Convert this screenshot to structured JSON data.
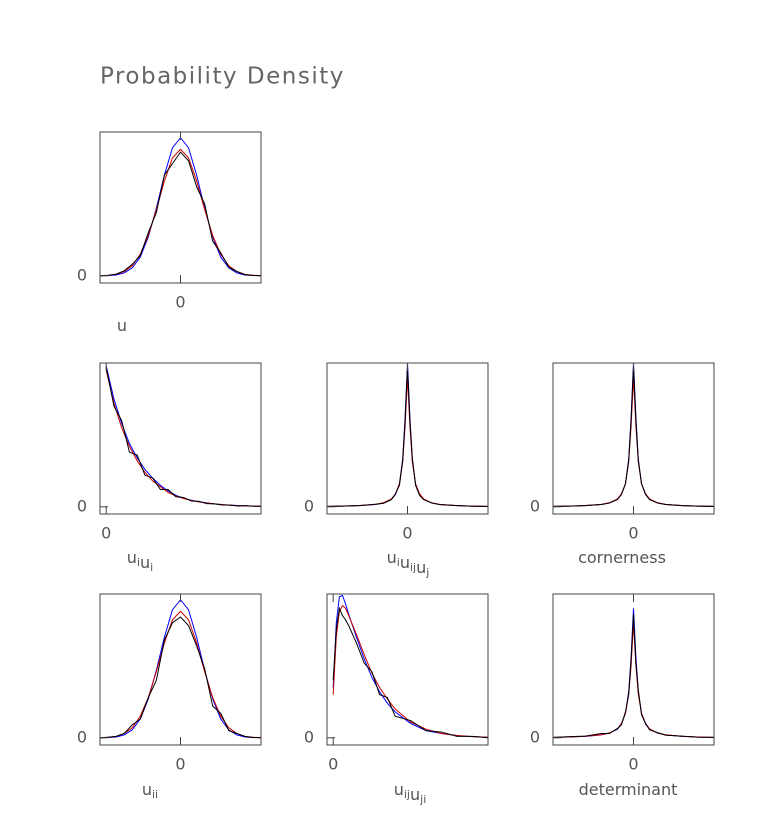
{
  "title": "Probability Density",
  "chart_data": [
    {
      "type": "line",
      "label": [
        [
          "u"
        ]
      ],
      "x": [
        -1,
        -0.9,
        -0.8,
        -0.7,
        -0.6,
        -0.5,
        -0.4,
        -0.3,
        -0.2,
        -0.1,
        0,
        0.1,
        0.2,
        0.3,
        0.4,
        0.5,
        0.6,
        0.7,
        0.8,
        0.9,
        1
      ],
      "series": [
        {
          "color": "#0000ff",
          "values": [
            0,
            0.002,
            0.006,
            0.02,
            0.055,
            0.13,
            0.27,
            0.47,
            0.7,
            0.89,
            0.96,
            0.89,
            0.7,
            0.47,
            0.27,
            0.13,
            0.055,
            0.02,
            0.006,
            0.002,
            0
          ]
        },
        {
          "color": "#cc0000",
          "values": [
            0.001,
            0.004,
            0.01,
            0.03,
            0.07,
            0.15,
            0.28,
            0.46,
            0.66,
            0.82,
            0.88,
            0.82,
            0.66,
            0.46,
            0.28,
            0.15,
            0.07,
            0.03,
            0.01,
            0.004,
            0.001
          ]
        },
        {
          "color": "#000000",
          "values": [
            0,
            0.003,
            0.012,
            0.035,
            0.08,
            0.14,
            0.3,
            0.44,
            0.7,
            0.78,
            0.86,
            0.8,
            0.62,
            0.5,
            0.24,
            0.16,
            0.06,
            0.03,
            0.008,
            0.002,
            0
          ]
        }
      ],
      "xlim": [
        -1,
        1
      ],
      "ylim": [
        -0.05,
        1
      ],
      "xticks": [
        0
      ],
      "yticks": [
        0
      ]
    },
    {
      "type": "line",
      "label": [
        [
          "u",
          "i"
        ],
        [
          "u",
          "i"
        ]
      ],
      "x": [
        0,
        0.05,
        0.1,
        0.15,
        0.2,
        0.25,
        0.3,
        0.35,
        0.4,
        0.45,
        0.5,
        0.55,
        0.6,
        0.65,
        0.7,
        0.75,
        0.8,
        0.85,
        0.9,
        0.95,
        1
      ],
      "series": [
        {
          "color": "#0000ff",
          "values": [
            0.98,
            0.75,
            0.58,
            0.44,
            0.34,
            0.26,
            0.2,
            0.15,
            0.11,
            0.08,
            0.06,
            0.046,
            0.035,
            0.027,
            0.02,
            0.015,
            0.012,
            0.009,
            0.007,
            0.005,
            0.004
          ]
        },
        {
          "color": "#cc0000",
          "values": [
            0.95,
            0.72,
            0.55,
            0.42,
            0.32,
            0.24,
            0.18,
            0.14,
            0.1,
            0.075,
            0.058,
            0.044,
            0.034,
            0.026,
            0.02,
            0.015,
            0.011,
            0.008,
            0.006,
            0.005,
            0.004
          ]
        },
        {
          "color": "#000000",
          "values": [
            0.97,
            0.7,
            0.6,
            0.38,
            0.36,
            0.22,
            0.2,
            0.12,
            0.12,
            0.07,
            0.065,
            0.04,
            0.038,
            0.022,
            0.02,
            0.013,
            0.012,
            0.006,
            0.008,
            0.004,
            0.003
          ]
        }
      ],
      "xlim": [
        -0.04,
        1
      ],
      "ylim": [
        -0.05,
        1
      ],
      "xticks": [
        0
      ],
      "yticks": [
        0
      ]
    },
    {
      "type": "line",
      "label": [
        [
          "u",
          "i"
        ],
        [
          "u",
          "ij"
        ],
        [
          "u",
          "j"
        ]
      ],
      "x": [
        -1,
        -0.8,
        -0.6,
        -0.4,
        -0.3,
        -0.2,
        -0.15,
        -0.1,
        -0.06,
        -0.03,
        0,
        0.03,
        0.06,
        0.1,
        0.15,
        0.2,
        0.3,
        0.4,
        0.6,
        0.8,
        1
      ],
      "series": [
        {
          "color": "#0000ff",
          "values": [
            0.003,
            0.005,
            0.008,
            0.016,
            0.026,
            0.052,
            0.085,
            0.16,
            0.33,
            0.62,
            1,
            0.62,
            0.33,
            0.16,
            0.085,
            0.052,
            0.026,
            0.016,
            0.008,
            0.005,
            0.003
          ]
        },
        {
          "color": "#cc0000",
          "values": [
            0.003,
            0.005,
            0.009,
            0.017,
            0.028,
            0.055,
            0.09,
            0.16,
            0.31,
            0.56,
            0.9,
            0.56,
            0.31,
            0.16,
            0.09,
            0.055,
            0.028,
            0.017,
            0.009,
            0.005,
            0.003
          ]
        },
        {
          "color": "#000000",
          "values": [
            0.002,
            0.006,
            0.008,
            0.018,
            0.024,
            0.05,
            0.09,
            0.15,
            0.32,
            0.6,
            0.97,
            0.6,
            0.34,
            0.15,
            0.08,
            0.05,
            0.027,
            0.015,
            0.009,
            0.004,
            0.002
          ]
        }
      ],
      "xlim": [
        -1,
        1
      ],
      "ylim": [
        -0.05,
        1
      ],
      "xticks": [
        0
      ],
      "yticks": [
        0
      ]
    },
    {
      "type": "line",
      "label": [
        [
          "cornerness"
        ]
      ],
      "x": [
        -1,
        -0.8,
        -0.6,
        -0.4,
        -0.3,
        -0.2,
        -0.15,
        -0.1,
        -0.06,
        -0.03,
        0,
        0.03,
        0.06,
        0.1,
        0.15,
        0.2,
        0.3,
        0.4,
        0.6,
        0.8,
        1
      ],
      "series": [
        {
          "color": "#0000ff",
          "values": [
            0.003,
            0.005,
            0.008,
            0.016,
            0.026,
            0.052,
            0.085,
            0.16,
            0.33,
            0.62,
            1,
            0.62,
            0.33,
            0.16,
            0.085,
            0.052,
            0.026,
            0.016,
            0.008,
            0.005,
            0.003
          ]
        },
        {
          "color": "#cc0000",
          "values": [
            0.003,
            0.005,
            0.009,
            0.017,
            0.028,
            0.055,
            0.09,
            0.16,
            0.31,
            0.56,
            0.9,
            0.56,
            0.31,
            0.16,
            0.09,
            0.055,
            0.028,
            0.017,
            0.009,
            0.005,
            0.003
          ]
        },
        {
          "color": "#000000",
          "values": [
            0.003,
            0.005,
            0.008,
            0.016,
            0.026,
            0.05,
            0.086,
            0.16,
            0.32,
            0.6,
            0.98,
            0.6,
            0.32,
            0.16,
            0.086,
            0.05,
            0.026,
            0.016,
            0.008,
            0.005,
            0.003
          ]
        }
      ],
      "xlim": [
        -1,
        1
      ],
      "ylim": [
        -0.05,
        1
      ],
      "xticks": [
        0
      ],
      "yticks": [
        0
      ]
    },
    {
      "type": "line",
      "label": [
        [
          "u",
          "ii"
        ]
      ],
      "x": [
        -1,
        -0.9,
        -0.8,
        -0.7,
        -0.6,
        -0.5,
        -0.4,
        -0.3,
        -0.2,
        -0.1,
        0,
        0.1,
        0.2,
        0.3,
        0.4,
        0.5,
        0.6,
        0.7,
        0.8,
        0.9,
        1
      ],
      "series": [
        {
          "color": "#0000ff",
          "values": [
            0,
            0.002,
            0.006,
            0.02,
            0.055,
            0.13,
            0.27,
            0.47,
            0.7,
            0.89,
            0.96,
            0.89,
            0.7,
            0.47,
            0.27,
            0.13,
            0.055,
            0.02,
            0.006,
            0.002,
            0
          ]
        },
        {
          "color": "#cc0000",
          "values": [
            0.001,
            0.004,
            0.01,
            0.03,
            0.07,
            0.15,
            0.28,
            0.46,
            0.66,
            0.82,
            0.88,
            0.82,
            0.66,
            0.46,
            0.28,
            0.15,
            0.07,
            0.03,
            0.01,
            0.004,
            0.001
          ]
        },
        {
          "color": "#000000",
          "values": [
            0,
            0.004,
            0.01,
            0.03,
            0.09,
            0.13,
            0.28,
            0.4,
            0.68,
            0.8,
            0.84,
            0.78,
            0.64,
            0.48,
            0.22,
            0.17,
            0.05,
            0.03,
            0.01,
            0.002,
            0
          ]
        }
      ],
      "xlim": [
        -1,
        1
      ],
      "ylim": [
        -0.05,
        1
      ],
      "xticks": [
        0
      ],
      "yticks": [
        0
      ]
    },
    {
      "type": "line",
      "label": [
        [
          "u",
          "ij"
        ],
        [
          "u",
          "ji"
        ]
      ],
      "x": [
        0,
        0.02,
        0.04,
        0.06,
        0.08,
        0.1,
        0.15,
        0.2,
        0.25,
        0.3,
        0.35,
        0.4,
        0.5,
        0.6,
        0.7,
        0.8,
        0.9,
        1
      ],
      "series": [
        {
          "color": "#0000ff",
          "values": [
            0.35,
            0.8,
            0.98,
            0.99,
            0.93,
            0.86,
            0.7,
            0.55,
            0.42,
            0.32,
            0.24,
            0.18,
            0.1,
            0.05,
            0.03,
            0.015,
            0.008,
            0.004
          ]
        },
        {
          "color": "#cc0000",
          "values": [
            0.3,
            0.7,
            0.88,
            0.92,
            0.9,
            0.85,
            0.72,
            0.58,
            0.45,
            0.35,
            0.27,
            0.2,
            0.11,
            0.06,
            0.03,
            0.016,
            0.008,
            0.004
          ]
        },
        {
          "color": "#000000",
          "values": [
            0.4,
            0.75,
            0.9,
            0.85,
            0.82,
            0.78,
            0.66,
            0.52,
            0.46,
            0.3,
            0.28,
            0.15,
            0.12,
            0.05,
            0.04,
            0.01,
            0.01,
            0
          ]
        }
      ],
      "xlim": [
        -0.04,
        1
      ],
      "ylim": [
        -0.05,
        1
      ],
      "xticks": [
        0
      ],
      "yticks": [
        0
      ]
    },
    {
      "type": "line",
      "label": [
        [
          "determinant"
        ]
      ],
      "x": [
        -1,
        -0.8,
        -0.6,
        -0.4,
        -0.3,
        -0.2,
        -0.15,
        -0.1,
        -0.06,
        -0.03,
        0,
        0.03,
        0.06,
        0.1,
        0.15,
        0.2,
        0.3,
        0.4,
        0.6,
        0.8,
        1
      ],
      "series": [
        {
          "color": "#0000ff",
          "values": [
            0.003,
            0.006,
            0.01,
            0.02,
            0.032,
            0.06,
            0.095,
            0.17,
            0.32,
            0.56,
            0.9,
            0.56,
            0.32,
            0.17,
            0.095,
            0.06,
            0.032,
            0.02,
            0.01,
            0.006,
            0.003
          ]
        },
        {
          "color": "#cc0000",
          "values": [
            0.003,
            0.006,
            0.011,
            0.021,
            0.034,
            0.062,
            0.1,
            0.17,
            0.3,
            0.5,
            0.8,
            0.5,
            0.3,
            0.17,
            0.1,
            0.062,
            0.034,
            0.021,
            0.011,
            0.006,
            0.003
          ]
        },
        {
          "color": "#000000",
          "values": [
            0.002,
            0.008,
            0.012,
            0.03,
            0.03,
            0.065,
            0.09,
            0.18,
            0.3,
            0.54,
            0.86,
            0.52,
            0.33,
            0.16,
            0.1,
            0.055,
            0.035,
            0.018,
            0.012,
            0.004,
            0.003
          ]
        }
      ],
      "xlim": [
        -1,
        1
      ],
      "ylim": [
        -0.05,
        1
      ],
      "xticks": [
        0
      ],
      "yticks": [
        0
      ]
    }
  ]
}
